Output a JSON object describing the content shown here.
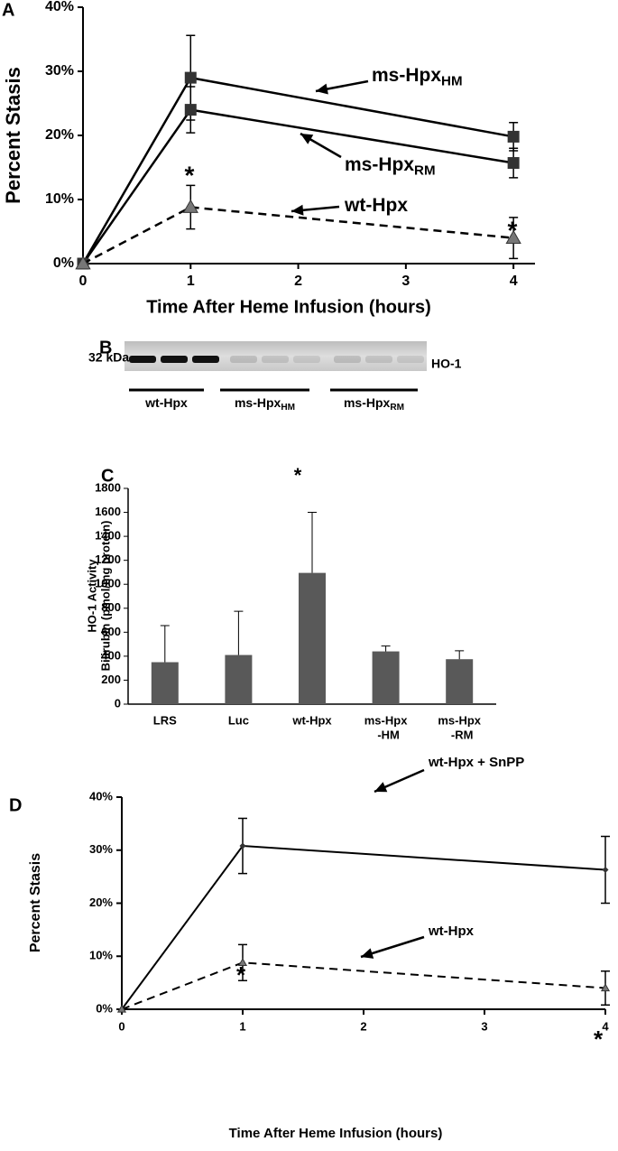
{
  "chart_data": [
    {
      "type": "line",
      "panel": "A",
      "xlabel": "Time After Heme Infusion (hours)",
      "ylabel": "Percent Stasis",
      "x": [
        0,
        1,
        4
      ],
      "xlim": [
        0,
        4.2
      ],
      "xticks": [
        0,
        1,
        2,
        3,
        4
      ],
      "ylim": [
        0,
        40
      ],
      "yticks": [
        {
          "value": 0,
          "label": "0%"
        },
        {
          "value": 10,
          "label": "10%"
        },
        {
          "value": 20,
          "label": "20%"
        },
        {
          "value": 30,
          "label": "30%"
        },
        {
          "value": 40,
          "label": "40%"
        }
      ],
      "series": [
        {
          "name": "ms-Hpx",
          "subscript": "HM",
          "color": "#000000",
          "linestyle": "solid",
          "marker": "square",
          "values": [
            0,
            29,
            19.8
          ],
          "errors": [
            null,
            6.6,
            2.2
          ]
        },
        {
          "name": "ms-Hpx",
          "subscript": "RM",
          "color": "#000000",
          "linestyle": "solid",
          "marker": "square",
          "values": [
            0,
            24,
            15.7
          ],
          "errors": [
            null,
            3.6,
            2.3
          ]
        },
        {
          "name": "wt-Hpx",
          "color": "#000000",
          "linestyle": "dashed",
          "marker": "triangle",
          "values": [
            0,
            8.8,
            4
          ],
          "errors": [
            null,
            3.4,
            3.2
          ]
        }
      ],
      "annotations": [
        "*",
        "*"
      ]
    },
    {
      "type": "blot",
      "panel": "B",
      "marker_label": "32 kDa",
      "band_label": "HO-1",
      "groups": [
        {
          "name": "wt-Hpx"
        },
        {
          "name": "ms-Hpx",
          "subscript": "HM"
        },
        {
          "name": "ms-Hpx",
          "subscript": "RM"
        }
      ]
    },
    {
      "type": "bar",
      "panel": "C",
      "ylabel": [
        "HO-1 Activity",
        "Bilirubin (pmol/mg protein)"
      ],
      "categories": [
        [
          "LRS"
        ],
        [
          "Luc"
        ],
        [
          "wt-Hpx"
        ],
        [
          "ms-Hpx",
          "-HM"
        ],
        [
          "ms-Hpx",
          "-RM"
        ]
      ],
      "values": [
        350,
        410,
        1095,
        440,
        375
      ],
      "errors": [
        305,
        365,
        505,
        45,
        70
      ],
      "color": "#595959",
      "ylim": [
        0,
        1800
      ],
      "yticks": [
        0,
        200,
        400,
        600,
        800,
        1000,
        1200,
        1400,
        1600,
        1800
      ],
      "annotations": [
        "*"
      ]
    },
    {
      "type": "line",
      "panel": "D",
      "xlabel": "Time After Heme Infusion (hours)",
      "ylabel": "Percent Stasis",
      "x": [
        0,
        1,
        4
      ],
      "xlim": [
        0,
        4
      ],
      "xticks": [
        0,
        1,
        2,
        3,
        4
      ],
      "ylim": [
        0,
        40
      ],
      "yticks": [
        {
          "value": 0,
          "label": "0%"
        },
        {
          "value": 10,
          "label": "10%"
        },
        {
          "value": 20,
          "label": "20%"
        },
        {
          "value": 30,
          "label": "30%"
        },
        {
          "value": 40,
          "label": "40%"
        }
      ],
      "series": [
        {
          "name": "wt-Hpx + SnPP",
          "color": "#000000",
          "linestyle": "solid",
          "marker": "diamond",
          "values": [
            0,
            30.8,
            26.3
          ],
          "errors": [
            null,
            5.2,
            6.3
          ]
        },
        {
          "name": "wt-Hpx",
          "color": "#000000",
          "linestyle": "dashed",
          "marker": "triangle",
          "values": [
            0,
            8.8,
            4
          ],
          "errors": [
            null,
            3.4,
            3.2
          ]
        }
      ],
      "annotations": [
        "*",
        "*"
      ]
    }
  ]
}
